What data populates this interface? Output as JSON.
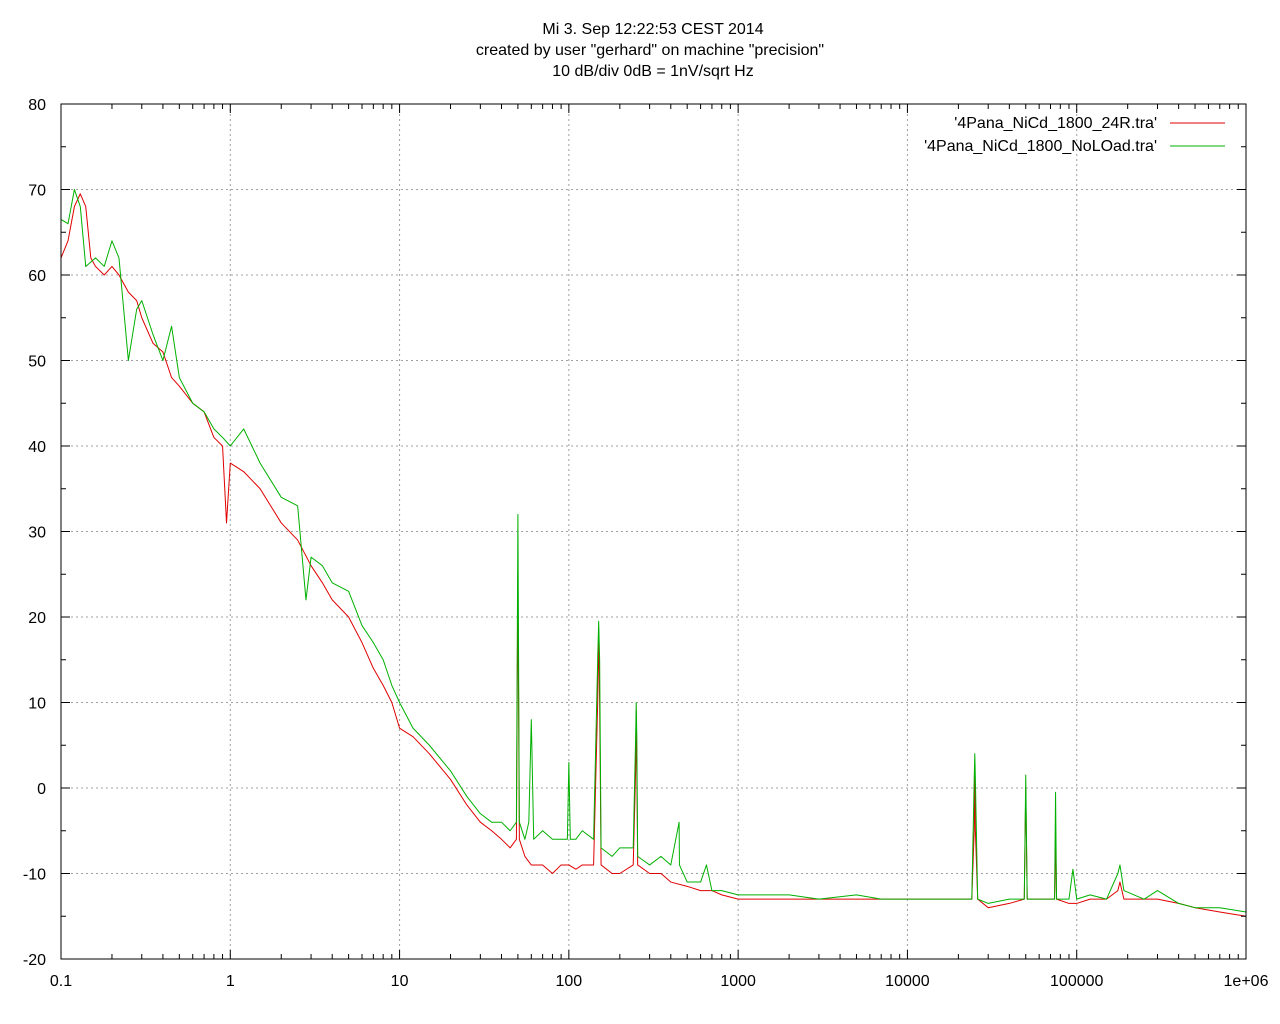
{
  "title_lines": [
    "Mi 3. Sep 12:22:53 CEST 2014",
    "created by user \"gerhard\" on machine \"precision\"",
    "10 dB/div   0dB = 1nV/sqrt Hz"
  ],
  "chart_data": {
    "type": "line",
    "x_scale": "log",
    "xlim": [
      0.1,
      1000000
    ],
    "ylim": [
      -20,
      80
    ],
    "grid": true,
    "legend_position": "top-right",
    "x_ticks": [
      {
        "value": 0.1,
        "label": "0.1"
      },
      {
        "value": 1,
        "label": "1"
      },
      {
        "value": 10,
        "label": "10"
      },
      {
        "value": 100,
        "label": "100"
      },
      {
        "value": 1000,
        "label": "1000"
      },
      {
        "value": 10000,
        "label": "10000"
      },
      {
        "value": 100000,
        "label": "100000"
      },
      {
        "value": 1000000,
        "label": "1e+06"
      }
    ],
    "y_ticks": [
      {
        "value": -20,
        "label": "-20"
      },
      {
        "value": -10,
        "label": "-10"
      },
      {
        "value": 0,
        "label": "0"
      },
      {
        "value": 10,
        "label": "10"
      },
      {
        "value": 20,
        "label": "20"
      },
      {
        "value": 30,
        "label": "30"
      },
      {
        "value": 40,
        "label": "40"
      },
      {
        "value": 50,
        "label": "50"
      },
      {
        "value": 60,
        "label": "60"
      },
      {
        "value": 70,
        "label": "70"
      },
      {
        "value": 80,
        "label": "80"
      }
    ],
    "series": [
      {
        "name": "'4Pana_NiCd_1800_24R.tra'",
        "color": "#e00000",
        "points": [
          [
            0.1,
            62
          ],
          [
            0.11,
            64
          ],
          [
            0.12,
            68
          ],
          [
            0.13,
            69.5
          ],
          [
            0.14,
            68
          ],
          [
            0.15,
            62
          ],
          [
            0.16,
            61
          ],
          [
            0.18,
            60
          ],
          [
            0.2,
            61
          ],
          [
            0.22,
            60
          ],
          [
            0.25,
            58
          ],
          [
            0.28,
            57
          ],
          [
            0.3,
            55
          ],
          [
            0.35,
            52
          ],
          [
            0.4,
            51
          ],
          [
            0.45,
            48
          ],
          [
            0.5,
            47
          ],
          [
            0.6,
            45
          ],
          [
            0.7,
            44
          ],
          [
            0.8,
            41
          ],
          [
            0.9,
            40
          ],
          [
            0.95,
            31
          ],
          [
            1.0,
            38
          ],
          [
            1.2,
            37
          ],
          [
            1.5,
            35
          ],
          [
            2.0,
            31
          ],
          [
            2.5,
            29
          ],
          [
            3.0,
            26
          ],
          [
            3.5,
            24
          ],
          [
            4.0,
            22
          ],
          [
            5.0,
            20
          ],
          [
            6.0,
            17
          ],
          [
            7.0,
            14
          ],
          [
            8.0,
            12
          ],
          [
            9.0,
            10
          ],
          [
            10,
            7
          ],
          [
            12,
            6
          ],
          [
            15,
            4
          ],
          [
            20,
            1
          ],
          [
            25,
            -2
          ],
          [
            30,
            -4
          ],
          [
            35,
            -5
          ],
          [
            40,
            -6
          ],
          [
            45,
            -7
          ],
          [
            49,
            -6
          ],
          [
            50,
            25
          ],
          [
            51,
            -6
          ],
          [
            55,
            -8
          ],
          [
            60,
            -9
          ],
          [
            70,
            -9
          ],
          [
            80,
            -10
          ],
          [
            90,
            -9
          ],
          [
            100,
            -9
          ],
          [
            110,
            -9.5
          ],
          [
            120,
            -9
          ],
          [
            140,
            -9
          ],
          [
            148,
            10
          ],
          [
            150,
            18.5
          ],
          [
            152,
            10
          ],
          [
            155,
            -9
          ],
          [
            180,
            -10
          ],
          [
            200,
            -10
          ],
          [
            240,
            -9
          ],
          [
            248,
            2
          ],
          [
            250,
            9
          ],
          [
            252,
            2
          ],
          [
            255,
            -9
          ],
          [
            300,
            -10
          ],
          [
            350,
            -10
          ],
          [
            400,
            -11
          ],
          [
            500,
            -11.5
          ],
          [
            600,
            -12
          ],
          [
            700,
            -12
          ],
          [
            800,
            -12.5
          ],
          [
            1000,
            -13
          ],
          [
            1500,
            -13
          ],
          [
            2000,
            -13
          ],
          [
            3000,
            -13
          ],
          [
            5000,
            -13
          ],
          [
            7000,
            -13
          ],
          [
            10000,
            -13
          ],
          [
            15000,
            -13
          ],
          [
            20000,
            -13
          ],
          [
            24000,
            -13
          ],
          [
            24800,
            -5
          ],
          [
            25000,
            2
          ],
          [
            25200,
            -5
          ],
          [
            26000,
            -13
          ],
          [
            30000,
            -14
          ],
          [
            40000,
            -13.5
          ],
          [
            49000,
            -13
          ],
          [
            50000,
            0
          ],
          [
            51000,
            -13
          ],
          [
            60000,
            -13
          ],
          [
            70000,
            -13
          ],
          [
            74000,
            -13
          ],
          [
            75000,
            -5
          ],
          [
            76000,
            -13
          ],
          [
            90000,
            -13.5
          ],
          [
            100000,
            -13.5
          ],
          [
            120000,
            -13
          ],
          [
            150000,
            -13
          ],
          [
            175000,
            -12
          ],
          [
            180000,
            -11
          ],
          [
            190000,
            -13
          ],
          [
            250000,
            -13
          ],
          [
            300000,
            -13
          ],
          [
            400000,
            -13.5
          ],
          [
            500000,
            -14
          ],
          [
            700000,
            -14.5
          ],
          [
            1000000,
            -15
          ]
        ]
      },
      {
        "name": "'4Pana_NiCd_1800_NoLOad.tra'",
        "color": "#00b000",
        "points": [
          [
            0.1,
            66.5
          ],
          [
            0.11,
            66
          ],
          [
            0.12,
            70
          ],
          [
            0.13,
            68
          ],
          [
            0.14,
            61
          ],
          [
            0.16,
            62
          ],
          [
            0.18,
            61
          ],
          [
            0.2,
            64
          ],
          [
            0.22,
            62
          ],
          [
            0.25,
            50
          ],
          [
            0.28,
            56
          ],
          [
            0.3,
            57
          ],
          [
            0.35,
            53
          ],
          [
            0.4,
            50
          ],
          [
            0.45,
            54
          ],
          [
            0.5,
            48
          ],
          [
            0.6,
            45
          ],
          [
            0.7,
            44
          ],
          [
            0.8,
            42
          ],
          [
            0.9,
            41
          ],
          [
            1.0,
            40
          ],
          [
            1.2,
            42
          ],
          [
            1.5,
            38
          ],
          [
            2.0,
            34
          ],
          [
            2.5,
            33
          ],
          [
            2.8,
            22
          ],
          [
            3.0,
            27
          ],
          [
            3.5,
            26
          ],
          [
            4.0,
            24
          ],
          [
            5.0,
            23
          ],
          [
            6.0,
            19
          ],
          [
            7.0,
            17
          ],
          [
            8.0,
            15
          ],
          [
            9.0,
            12
          ],
          [
            10,
            10
          ],
          [
            12,
            7
          ],
          [
            15,
            5
          ],
          [
            20,
            2
          ],
          [
            25,
            -1
          ],
          [
            30,
            -3
          ],
          [
            35,
            -4
          ],
          [
            40,
            -4
          ],
          [
            45,
            -5
          ],
          [
            49,
            -4
          ],
          [
            50,
            32
          ],
          [
            51,
            -4
          ],
          [
            55,
            -6
          ],
          [
            58,
            -4
          ],
          [
            60,
            8
          ],
          [
            62,
            -6
          ],
          [
            70,
            -5
          ],
          [
            80,
            -6
          ],
          [
            90,
            -6
          ],
          [
            98,
            -6
          ],
          [
            100,
            3
          ],
          [
            102,
            -6
          ],
          [
            110,
            -6
          ],
          [
            120,
            -5
          ],
          [
            140,
            -6
          ],
          [
            148,
            15
          ],
          [
            150,
            19.5
          ],
          [
            152,
            15
          ],
          [
            155,
            -7
          ],
          [
            180,
            -8
          ],
          [
            200,
            -7
          ],
          [
            240,
            -7
          ],
          [
            248,
            6
          ],
          [
            250,
            10
          ],
          [
            252,
            6
          ],
          [
            255,
            -8
          ],
          [
            300,
            -9
          ],
          [
            350,
            -8
          ],
          [
            400,
            -9
          ],
          [
            448,
            -4
          ],
          [
            450,
            -9
          ],
          [
            500,
            -11
          ],
          [
            600,
            -11
          ],
          [
            650,
            -9
          ],
          [
            700,
            -12
          ],
          [
            800,
            -12
          ],
          [
            1000,
            -12.5
          ],
          [
            1500,
            -12.5
          ],
          [
            2000,
            -12.5
          ],
          [
            3000,
            -13
          ],
          [
            5000,
            -12.5
          ],
          [
            7000,
            -13
          ],
          [
            10000,
            -13
          ],
          [
            15000,
            -13
          ],
          [
            20000,
            -13
          ],
          [
            24000,
            -13
          ],
          [
            24800,
            1
          ],
          [
            25000,
            4
          ],
          [
            25200,
            1
          ],
          [
            26000,
            -13
          ],
          [
            30000,
            -13.5
          ],
          [
            40000,
            -13
          ],
          [
            49000,
            -13
          ],
          [
            50000,
            1.5
          ],
          [
            51000,
            -13
          ],
          [
            60000,
            -13
          ],
          [
            70000,
            -13
          ],
          [
            74000,
            -13
          ],
          [
            75000,
            -0.5
          ],
          [
            76000,
            -13
          ],
          [
            90000,
            -13
          ],
          [
            95000,
            -9.5
          ],
          [
            100000,
            -13
          ],
          [
            120000,
            -12.5
          ],
          [
            150000,
            -13
          ],
          [
            175000,
            -10
          ],
          [
            180000,
            -9
          ],
          [
            190000,
            -12
          ],
          [
            250000,
            -13
          ],
          [
            300000,
            -12
          ],
          [
            400000,
            -13.5
          ],
          [
            500000,
            -14
          ],
          [
            700000,
            -14
          ],
          [
            1000000,
            -14.5
          ]
        ]
      }
    ]
  }
}
